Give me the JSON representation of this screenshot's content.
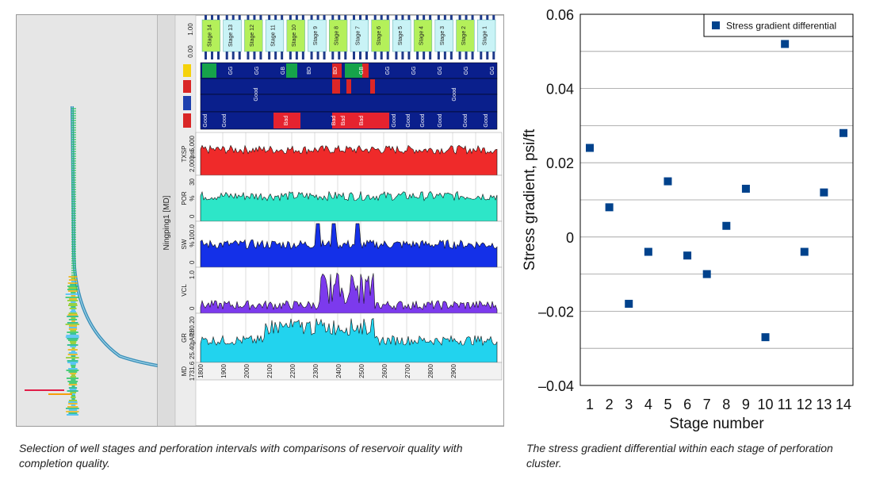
{
  "well_log": {
    "well_name": "Ningping1 [MD]",
    "stages": [
      "Stage 14",
      "Stage 13",
      "Stage 12",
      "Stage 11",
      "Stage 10",
      "Stage 9",
      "Stage 8",
      "Stage 7",
      "Stage 6",
      "Stage 5",
      "Stage 4",
      "Stage 3",
      "Stage 2",
      "Stage 1"
    ],
    "grade_row1": [
      "GG",
      "GG",
      "GB",
      "BD",
      "BD",
      "GB",
      "GG",
      "GG",
      "GG",
      "GG",
      "GG"
    ],
    "grade_row2": [
      "Good",
      "Good"
    ],
    "grade_row3": [
      "Good",
      "Good",
      "Bad",
      "Bad",
      "Bad",
      "Bad",
      "Good",
      "Good",
      "Good",
      "Good",
      "Good",
      "Good"
    ],
    "tracks": [
      {
        "name": "TXSP",
        "scale_top": "5,000",
        "scale_bottom": "2,000",
        "unit": "psi"
      },
      {
        "name": "POR",
        "scale_top": "30",
        "scale_bottom": "0",
        "unit": "%"
      },
      {
        "name": "SW",
        "scale_top": "100.0",
        "scale_bottom": "0",
        "unit": "%"
      },
      {
        "name": "VCL",
        "scale_top": "1.0",
        "scale_bottom": "0",
        "unit": ""
      },
      {
        "name": "GR",
        "scale_top": "180.20",
        "scale_bottom": "25.40",
        "unit": "gAPI"
      }
    ],
    "md_label": "MD",
    "md_start": "1731.6",
    "md_ticks": [
      "1800",
      "1900",
      "2000",
      "2100",
      "2200",
      "2300",
      "2400",
      "2500",
      "2600",
      "2700",
      "2800",
      "2900"
    ],
    "top_scale": [
      "1.00",
      "0.00"
    ]
  },
  "chart_data": {
    "type": "scatter",
    "categories": [
      1,
      2,
      3,
      4,
      5,
      6,
      7,
      8,
      9,
      10,
      11,
      12,
      13,
      14
    ],
    "series": [
      {
        "name": "Stress gradient differential",
        "x": [
          1,
          2,
          3,
          4,
          5,
          6,
          7,
          8,
          9,
          10,
          11,
          12,
          13,
          14
        ],
        "values": [
          0.024,
          0.008,
          -0.018,
          -0.004,
          0.015,
          -0.005,
          -0.01,
          0.003,
          0.013,
          -0.027,
          0.052,
          -0.004,
          0.012,
          0.028
        ],
        "color": "#00428c"
      }
    ],
    "xlabel": "Stage number",
    "ylabel": "Stress gradient, psi/ft",
    "ylim": [
      -0.04,
      0.06
    ],
    "yticks": [
      "0.06",
      "0.04",
      "0.02",
      "0",
      "–0.02",
      "–0.04"
    ],
    "xticks": [
      "1",
      "2",
      "3",
      "4",
      "5",
      "6",
      "7",
      "8",
      "9",
      "10",
      "11",
      "12",
      "13",
      "14"
    ],
    "grid": "horizontal",
    "legend": "top-right"
  },
  "captions": {
    "left": "Selection of well stages and perforation intervals with comparisons of reservoir quality with completion quality.",
    "right": "The stress gradient differential within each stage of perforation cluster."
  }
}
